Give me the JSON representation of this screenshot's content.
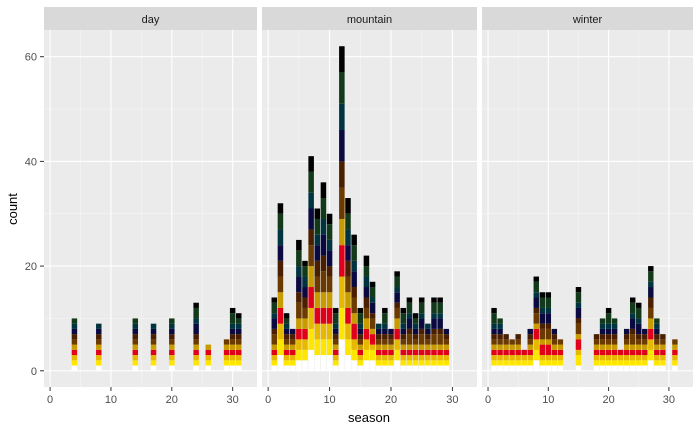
{
  "chart_data": {
    "type": "bar",
    "stacked": true,
    "xlabel": "season",
    "ylabel": "count",
    "xlim": [
      -1,
      34
    ],
    "ylim": [
      -3.1,
      65.1
    ],
    "x_ticks": [
      0,
      10,
      20,
      30
    ],
    "y_ticks": [
      0,
      20,
      40,
      60
    ],
    "grid": true,
    "legend": "none",
    "facet_order": [
      "day",
      "mountain",
      "winter"
    ],
    "segment_colors": [
      "#ffffff",
      "#ffe600",
      "#e6b800",
      "#e0001a",
      "#c89b00",
      "#6a3a00",
      "#4a1f00",
      "#0a0a40",
      "#003340",
      "#123a1a",
      "#000000"
    ],
    "panels": [
      {
        "name": "day",
        "x": [
          4,
          8,
          14,
          17,
          20,
          24,
          26,
          29,
          30,
          31
        ],
        "totals": [
          10,
          9,
          10,
          9,
          10,
          13,
          5,
          6,
          12,
          11
        ]
      },
      {
        "name": "mountain",
        "x": [
          1,
          2,
          3,
          4,
          5,
          6,
          7,
          8,
          9,
          10,
          11,
          12,
          13,
          14,
          15,
          16,
          17,
          18,
          19,
          20,
          21,
          22,
          23,
          24,
          25,
          26,
          27,
          28,
          29
        ],
        "totals": [
          14,
          32,
          11,
          8,
          25,
          21,
          41,
          31,
          36,
          30,
          12,
          62,
          33,
          26,
          12,
          22,
          17,
          9,
          12,
          8,
          19,
          12,
          14,
          11,
          14,
          9,
          14,
          14,
          8
        ]
      },
      {
        "name": "winter",
        "x": [
          1,
          2,
          3,
          4,
          5,
          6,
          7,
          8,
          9,
          10,
          11,
          12,
          15,
          18,
          19,
          20,
          21,
          22,
          23,
          24,
          25,
          26,
          27,
          28,
          29,
          31
        ],
        "totals": [
          12,
          10,
          7,
          6,
          7,
          4,
          8,
          18,
          15,
          15,
          8,
          6,
          16,
          7,
          10,
          12,
          10,
          4,
          8,
          14,
          13,
          8,
          20,
          10,
          7,
          6
        ]
      }
    ]
  }
}
